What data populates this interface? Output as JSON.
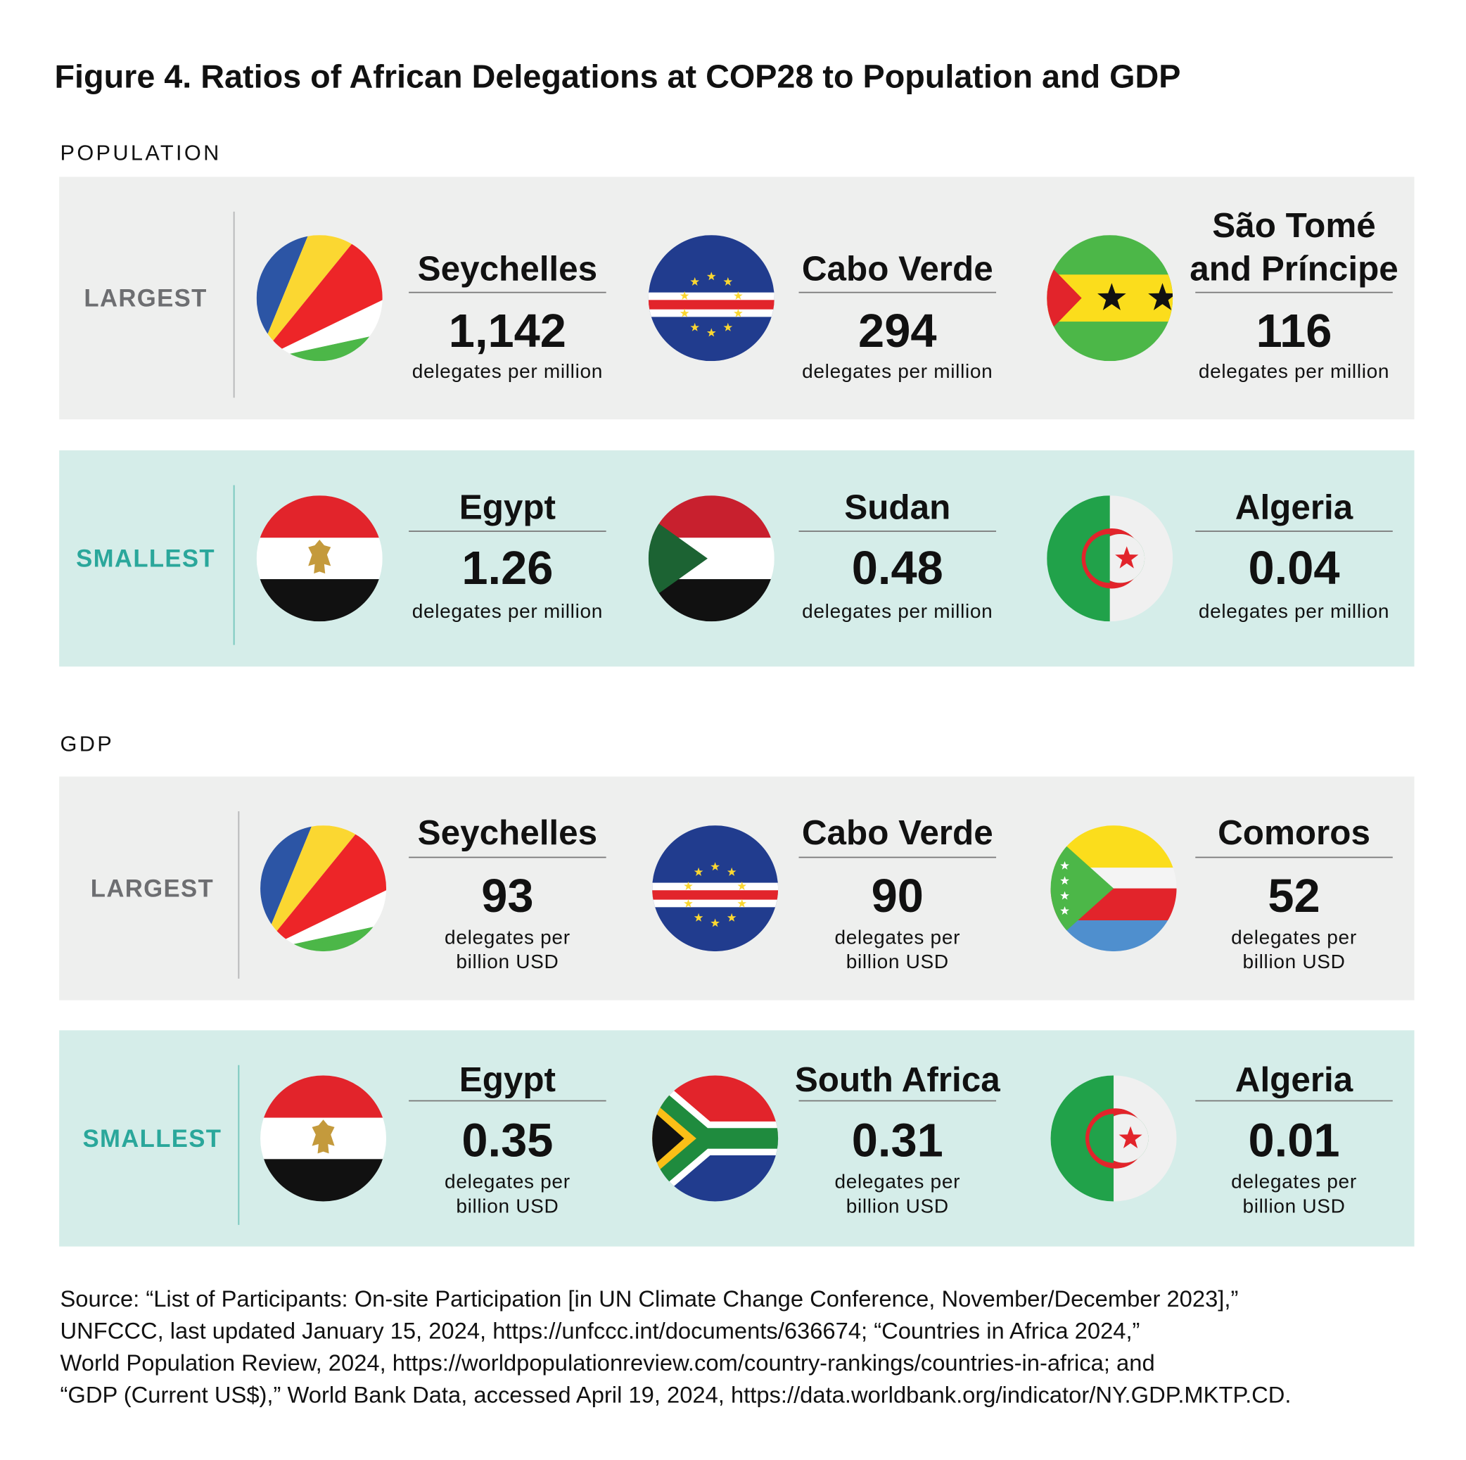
{
  "title": "Figure 4. Ratios of African Delegations at COP28 to Population and GDP",
  "sections": [
    {
      "label": "POPULATION",
      "unit": [
        "delegates per million"
      ],
      "groups": [
        {
          "label": "LARGEST",
          "items": [
            {
              "country": [
                "Seychelles"
              ],
              "value": "1,142"
            },
            {
              "country": [
                "Cabo Verde"
              ],
              "value": "294"
            },
            {
              "country": [
                "São Tomé",
                "and Príncipe"
              ],
              "value": "116"
            }
          ]
        },
        {
          "label": "SMALLEST",
          "items": [
            {
              "country": [
                "Egypt"
              ],
              "value": "1.26"
            },
            {
              "country": [
                "Sudan"
              ],
              "value": "0.48"
            },
            {
              "country": [
                "Algeria"
              ],
              "value": "0.04"
            }
          ]
        }
      ]
    },
    {
      "label": "GDP",
      "unit": [
        "delegates per",
        "billion USD"
      ],
      "groups": [
        {
          "label": "LARGEST",
          "items": [
            {
              "country": [
                "Seychelles"
              ],
              "value": "93"
            },
            {
              "country": [
                "Cabo Verde"
              ],
              "value": "90"
            },
            {
              "country": [
                "Comoros"
              ],
              "value": "52"
            }
          ]
        },
        {
          "label": "SMALLEST",
          "items": [
            {
              "country": [
                "Egypt"
              ],
              "value": "0.35"
            },
            {
              "country": [
                "South Africa"
              ],
              "value": "0.31"
            },
            {
              "country": [
                "Algeria"
              ],
              "value": "0.01"
            }
          ]
        }
      ]
    }
  ],
  "source": [
    "Source: “List of Participants: On-site Participation [in UN Climate Change Conference, November/December 2023],”",
    "UNFCCC, last updated January 15, 2024, https://unfccc.int/documents/636674; “Countries in Africa 2024,”",
    "World Population Review, 2024, https://worldpopulationreview.com/country-rankings/countries-in-africa; and",
    "“GDP (Current US$),” World Bank Data, accessed April 19, 2024, https://data.worldbank.org/indicator/NY.GDP.MKTP.CD."
  ]
}
